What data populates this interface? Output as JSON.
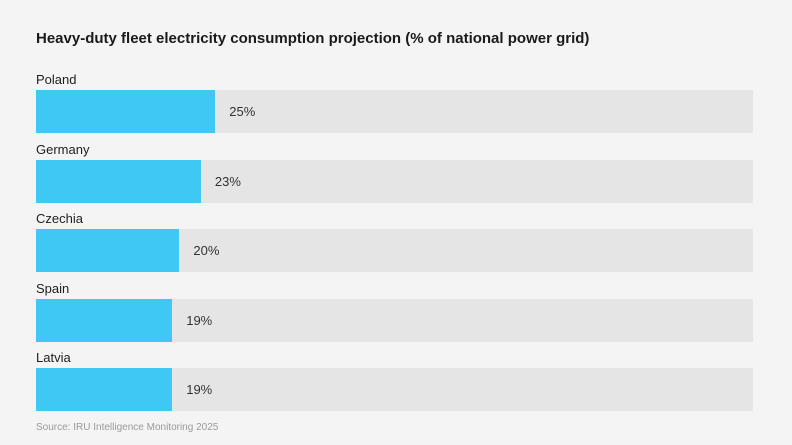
{
  "title": "Heavy-duty fleet electricity consumption projection (% of national power grid)",
  "source": "Source: IRU Intelligence Monitoring 2025",
  "colors": {
    "bar": "#40c8f4",
    "track": "#e5e5e5",
    "background": "#f4f4f4"
  },
  "chart_data": {
    "type": "bar",
    "orientation": "horizontal",
    "title": "Heavy-duty fleet electricity consumption projection (% of national power grid)",
    "categories": [
      "Poland",
      "Germany",
      "Czechia",
      "Spain",
      "Latvia"
    ],
    "values": [
      25,
      23,
      20,
      19,
      19
    ],
    "value_labels": [
      "25%",
      "23%",
      "20%",
      "19%",
      "19%"
    ],
    "xlim": [
      0,
      100
    ],
    "grid": false,
    "legend": "none"
  }
}
